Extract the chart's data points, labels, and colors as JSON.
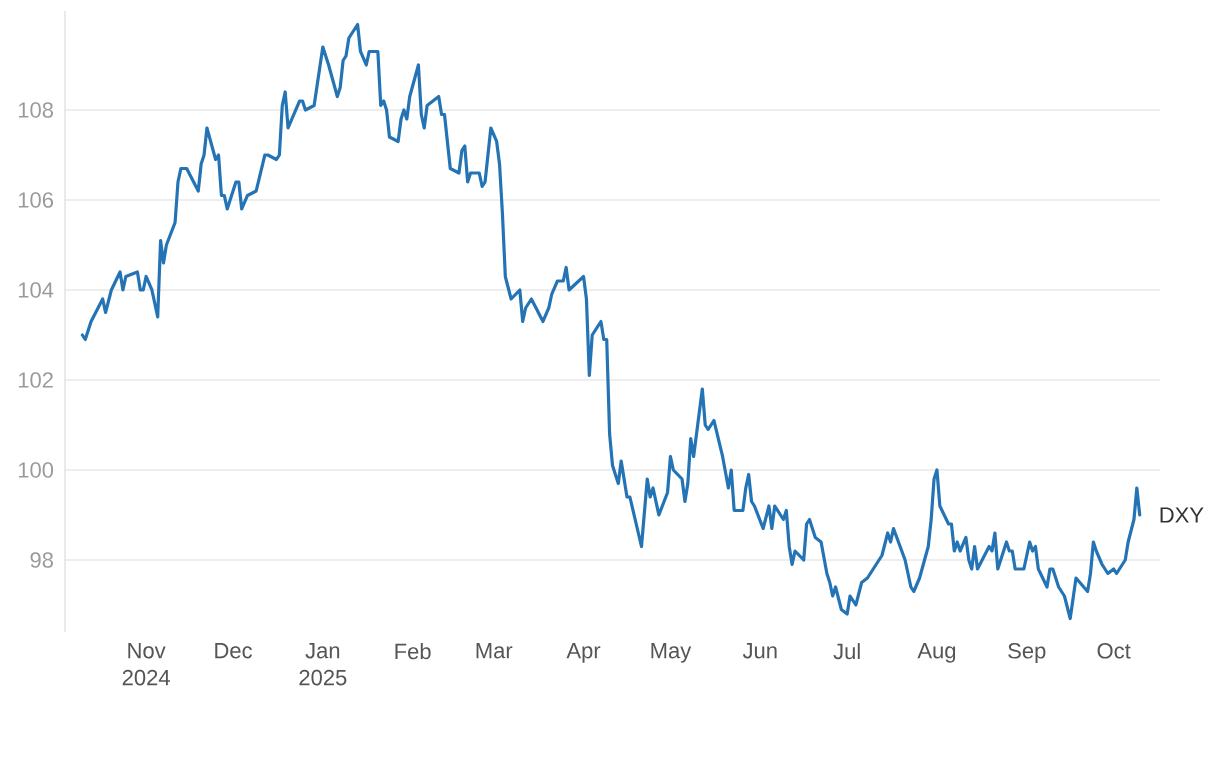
{
  "chart_data": {
    "type": "line",
    "xlim": [
      "2024-10-04",
      "2025-10-17"
    ],
    "ylim": [
      96.4,
      110.2
    ],
    "yticks": [
      98,
      100,
      102,
      104,
      106,
      108
    ],
    "xticks": [
      {
        "value": "2024-11-01",
        "label": "Nov 2024"
      },
      {
        "value": "2024-12-01",
        "label": "Dec"
      },
      {
        "value": "2025-01-01",
        "label": "Jan 2025"
      },
      {
        "value": "2025-02-01",
        "label": "Feb"
      },
      {
        "value": "2025-03-01",
        "label": "Mar"
      },
      {
        "value": "2025-04-01",
        "label": "Apr"
      },
      {
        "value": "2025-05-01",
        "label": "May"
      },
      {
        "value": "2025-06-01",
        "label": "Jun"
      },
      {
        "value": "2025-07-01",
        "label": "Jul"
      },
      {
        "value": "2025-08-01",
        "label": "Aug"
      },
      {
        "value": "2025-09-01",
        "label": "Sep"
      },
      {
        "value": "2025-10-01",
        "label": "Oct"
      }
    ],
    "grid": "y",
    "series": [
      {
        "name": "DXY",
        "color": "#2474b5",
        "x": [
          "2024-10-10",
          "2024-10-11",
          "2024-10-13",
          "2024-10-17",
          "2024-10-18",
          "2024-10-20",
          "2024-10-23",
          "2024-10-24",
          "2024-10-25",
          "2024-10-29",
          "2024-10-30",
          "2024-10-31",
          "2024-11-01",
          "2024-11-03",
          "2024-11-05",
          "2024-11-06",
          "2024-11-07",
          "2024-11-08",
          "2024-11-11",
          "2024-11-12",
          "2024-11-13",
          "2024-11-15",
          "2024-11-19",
          "2024-11-20",
          "2024-11-21",
          "2024-11-22",
          "2024-11-25",
          "2024-11-26",
          "2024-11-27",
          "2024-11-28",
          "2024-11-29",
          "2024-12-02",
          "2024-12-03",
          "2024-12-04",
          "2024-12-06",
          "2024-12-09",
          "2024-12-12",
          "2024-12-13",
          "2024-12-16",
          "2024-12-17",
          "2024-12-18",
          "2024-12-19",
          "2024-12-20",
          "2024-12-24",
          "2024-12-25",
          "2024-12-26",
          "2024-12-29",
          "2025-01-01",
          "2025-01-03",
          "2025-01-06",
          "2025-01-07",
          "2025-01-08",
          "2025-01-09",
          "2025-01-10",
          "2025-01-13",
          "2025-01-14",
          "2025-01-16",
          "2025-01-17",
          "2025-01-20",
          "2025-01-21",
          "2025-01-22",
          "2025-01-23",
          "2025-01-24",
          "2025-01-27",
          "2025-01-28",
          "2025-01-29",
          "2025-01-30",
          "2025-01-31",
          "2025-02-03",
          "2025-02-04",
          "2025-02-05",
          "2025-02-06",
          "2025-02-10",
          "2025-02-11",
          "2025-02-12",
          "2025-02-14",
          "2025-02-17",
          "2025-02-18",
          "2025-02-19",
          "2025-02-20",
          "2025-02-21",
          "2025-02-24",
          "2025-02-25",
          "2025-02-26",
          "2025-02-28",
          "2025-03-02",
          "2025-03-03",
          "2025-03-04",
          "2025-03-05",
          "2025-03-07",
          "2025-03-10",
          "2025-03-11",
          "2025-03-12",
          "2025-03-14",
          "2025-03-18",
          "2025-03-20",
          "2025-03-21",
          "2025-03-23",
          "2025-03-25",
          "2025-03-26",
          "2025-03-27",
          "2025-04-01",
          "2025-04-02",
          "2025-04-03",
          "2025-04-04",
          "2025-04-07",
          "2025-04-08",
          "2025-04-09",
          "2025-04-10",
          "2025-04-11",
          "2025-04-13",
          "2025-04-14",
          "2025-04-16",
          "2025-04-17",
          "2025-04-21",
          "2025-04-23",
          "2025-04-24",
          "2025-04-25",
          "2025-04-27",
          "2025-04-30",
          "2025-05-01",
          "2025-05-02",
          "2025-05-05",
          "2025-05-06",
          "2025-05-07",
          "2025-05-08",
          "2025-05-09",
          "2025-05-12",
          "2025-05-13",
          "2025-05-14",
          "2025-05-16",
          "2025-05-19",
          "2025-05-21",
          "2025-05-22",
          "2025-05-23",
          "2025-05-26",
          "2025-05-27",
          "2025-05-28",
          "2025-05-29",
          "2025-05-30",
          "2025-06-02",
          "2025-06-04",
          "2025-06-05",
          "2025-06-06",
          "2025-06-09",
          "2025-06-10",
          "2025-06-11",
          "2025-06-12",
          "2025-06-13",
          "2025-06-16",
          "2025-06-17",
          "2025-06-18",
          "2025-06-20",
          "2025-06-22",
          "2025-06-24",
          "2025-06-25",
          "2025-06-26",
          "2025-06-27",
          "2025-06-29",
          "2025-07-01",
          "2025-07-02",
          "2025-07-04",
          "2025-07-06",
          "2025-07-08",
          "2025-07-10",
          "2025-07-13",
          "2025-07-15",
          "2025-07-16",
          "2025-07-17",
          "2025-07-21",
          "2025-07-22",
          "2025-07-23",
          "2025-07-24",
          "2025-07-26",
          "2025-07-29",
          "2025-07-30",
          "2025-07-31",
          "2025-08-01",
          "2025-08-02",
          "2025-08-05",
          "2025-08-06",
          "2025-08-07",
          "2025-08-08",
          "2025-08-09",
          "2025-08-11",
          "2025-08-12",
          "2025-08-13",
          "2025-08-14",
          "2025-08-15",
          "2025-08-19",
          "2025-08-20",
          "2025-08-21",
          "2025-08-22",
          "2025-08-24",
          "2025-08-25",
          "2025-08-26",
          "2025-08-27",
          "2025-08-28",
          "2025-08-31",
          "2025-09-02",
          "2025-09-03",
          "2025-09-04",
          "2025-09-05",
          "2025-09-08",
          "2025-09-09",
          "2025-09-10",
          "2025-09-11",
          "2025-09-12",
          "2025-09-14",
          "2025-09-16",
          "2025-09-18",
          "2025-09-22",
          "2025-09-23",
          "2025-09-24",
          "2025-09-25",
          "2025-09-27",
          "2025-09-29",
          "2025-10-01",
          "2025-10-02",
          "2025-10-05",
          "2025-10-06",
          "2025-10-08",
          "2025-10-09",
          "2025-10-10"
        ],
        "values": [
          103.0,
          102.9,
          103.3,
          103.8,
          103.5,
          104.0,
          104.4,
          104.0,
          104.3,
          104.4,
          104.0,
          104.0,
          104.3,
          104.0,
          103.4,
          105.1,
          104.6,
          105.0,
          105.5,
          106.4,
          106.7,
          106.7,
          106.2,
          106.8,
          107.0,
          107.6,
          106.9,
          107.0,
          106.1,
          106.1,
          105.8,
          106.4,
          106.4,
          105.8,
          106.1,
          106.2,
          107.0,
          107.0,
          106.9,
          107.0,
          108.1,
          108.4,
          107.6,
          108.2,
          108.2,
          108.0,
          108.1,
          109.4,
          109.0,
          108.3,
          108.5,
          109.1,
          109.2,
          109.6,
          109.9,
          109.3,
          109.0,
          109.3,
          109.3,
          108.1,
          108.2,
          108.0,
          107.4,
          107.3,
          107.8,
          108.0,
          107.8,
          108.3,
          109.0,
          107.9,
          107.6,
          108.1,
          108.3,
          107.9,
          107.9,
          106.7,
          106.6,
          107.1,
          107.2,
          106.4,
          106.6,
          106.6,
          106.3,
          106.4,
          107.6,
          107.3,
          106.8,
          105.7,
          104.3,
          103.8,
          104.0,
          103.3,
          103.6,
          103.8,
          103.3,
          103.6,
          103.9,
          104.2,
          104.2,
          104.5,
          104.0,
          104.3,
          103.8,
          102.1,
          103.0,
          103.3,
          102.9,
          102.9,
          100.8,
          100.1,
          99.7,
          100.2,
          99.4,
          99.4,
          98.3,
          99.8,
          99.4,
          99.6,
          99.0,
          99.5,
          100.3,
          100.0,
          99.8,
          99.3,
          99.7,
          100.7,
          100.3,
          101.8,
          101.0,
          100.9,
          101.1,
          100.3,
          99.6,
          100.0,
          99.1,
          99.1,
          99.6,
          99.9,
          99.3,
          99.2,
          98.7,
          99.2,
          98.7,
          99.2,
          98.9,
          99.1,
          98.3,
          97.9,
          98.2,
          98.0,
          98.8,
          98.9,
          98.5,
          98.4,
          97.7,
          97.5,
          97.2,
          97.4,
          96.9,
          96.8,
          97.2,
          97.0,
          97.5,
          97.6,
          97.8,
          98.1,
          98.6,
          98.4,
          98.7,
          98.0,
          97.7,
          97.4,
          97.3,
          97.6,
          98.3,
          98.9,
          99.8,
          100.0,
          99.2,
          98.8,
          98.8,
          98.2,
          98.4,
          98.2,
          98.5,
          98.0,
          97.8,
          98.3,
          97.8,
          98.3,
          98.2,
          98.6,
          97.8,
          98.2,
          98.4,
          98.2,
          98.2,
          97.8,
          97.8,
          98.4,
          98.2,
          98.3,
          97.8,
          97.4,
          97.8,
          97.8,
          97.6,
          97.4,
          97.2,
          96.7,
          97.6,
          97.3,
          97.7,
          98.4,
          98.2,
          97.9,
          97.7,
          97.8,
          97.7,
          98.0,
          98.4,
          98.9,
          99.6,
          99.0
        ]
      }
    ]
  }
}
